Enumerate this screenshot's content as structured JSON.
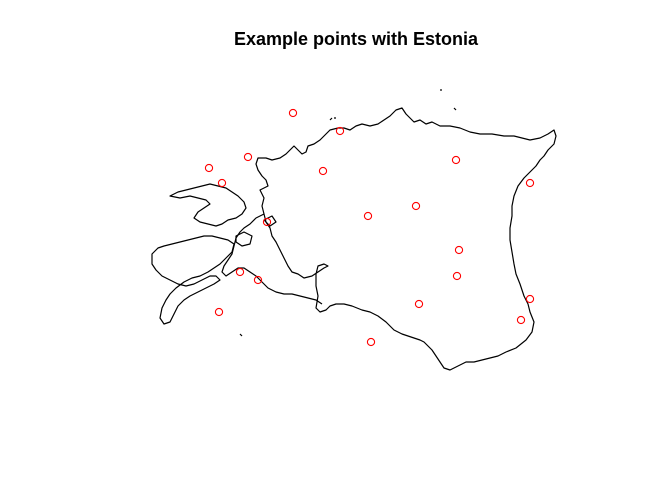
{
  "title": "Example points with Estonia",
  "map": {
    "region": "Estonia",
    "outline_color": "#000000",
    "point_color": "#ff0000",
    "point_style": "open-circle",
    "point_count": 19
  }
}
